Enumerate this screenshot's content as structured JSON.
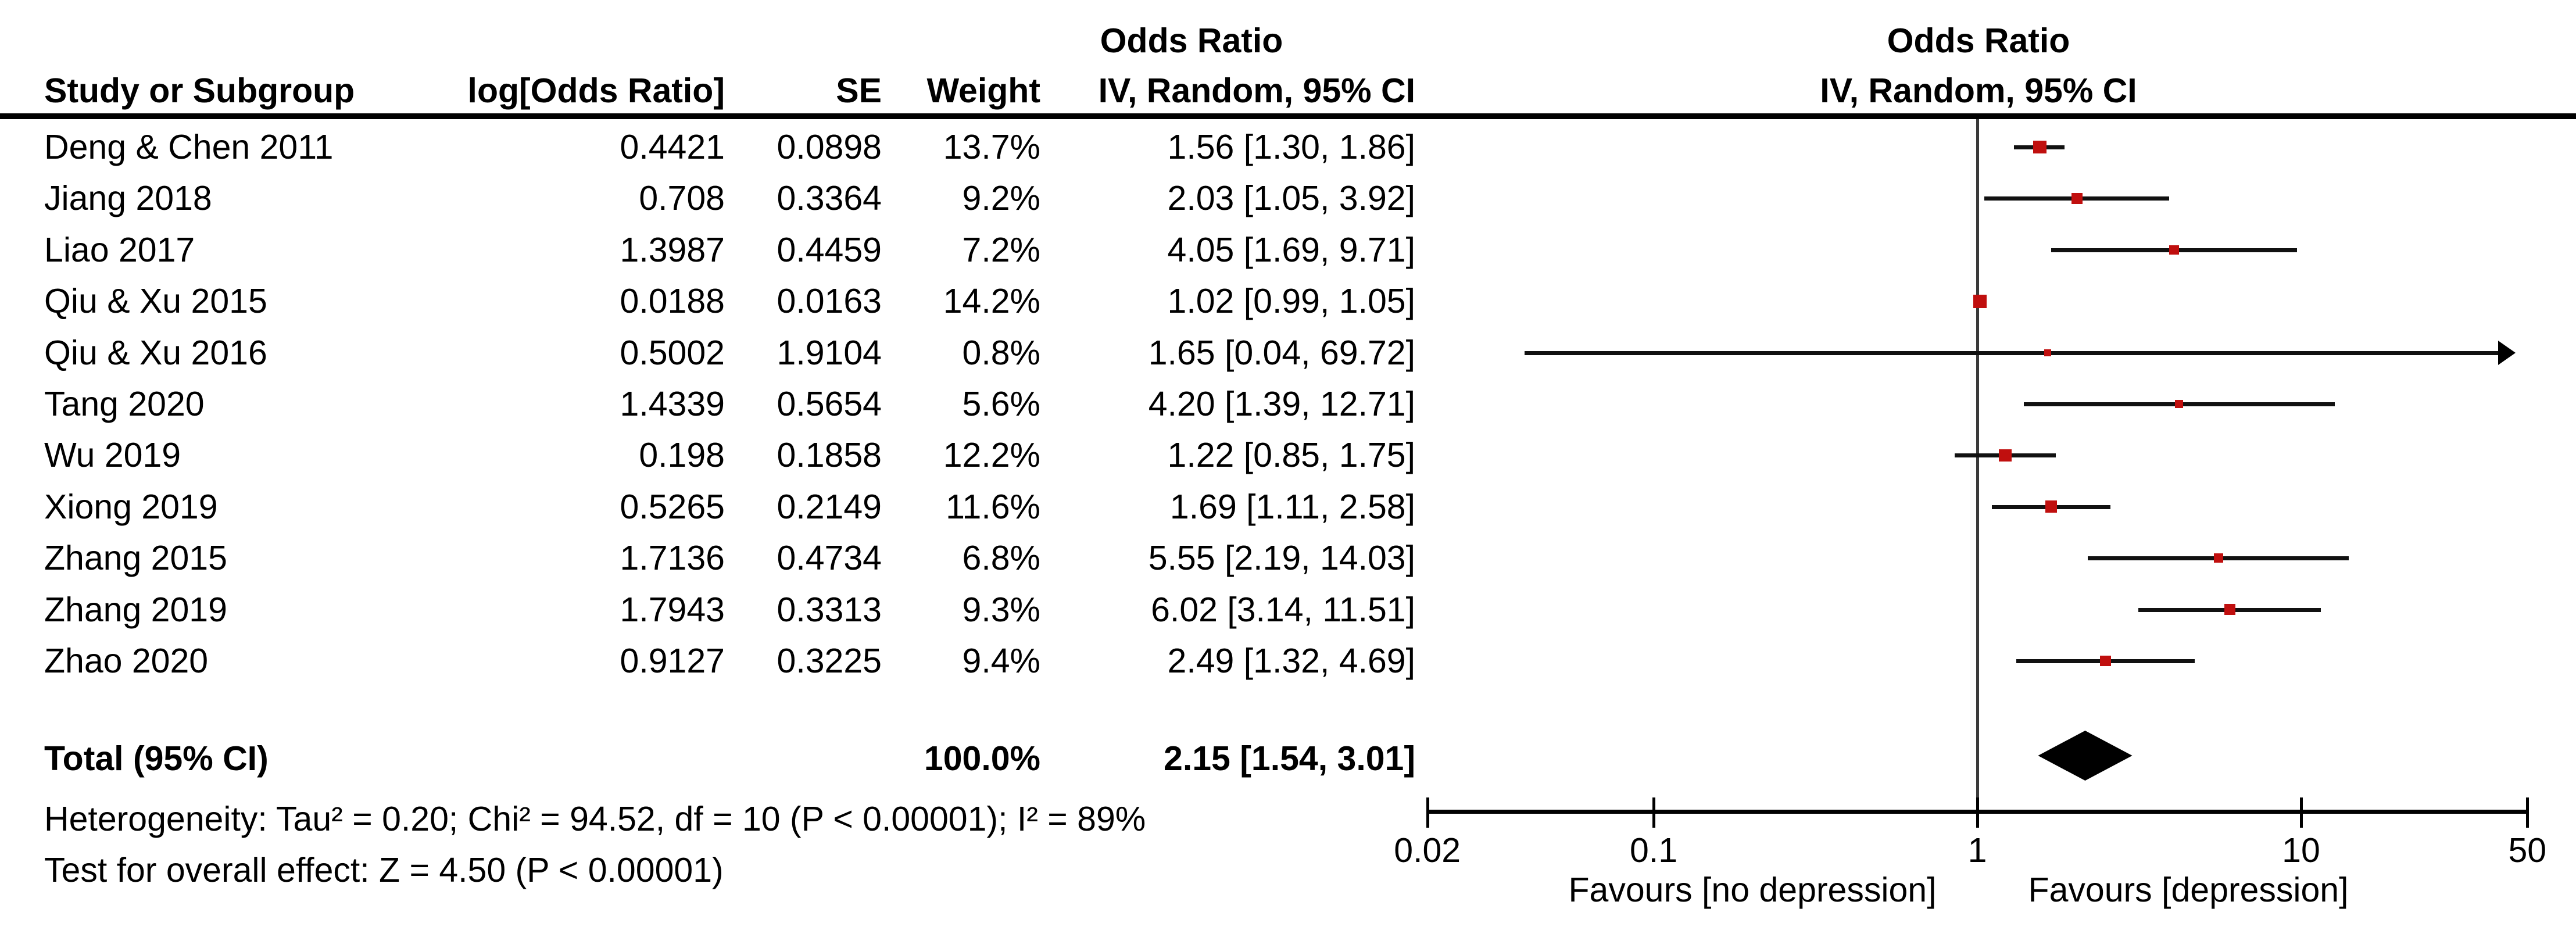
{
  "header": {
    "table_or_top": "Odds Ratio",
    "study": "Study or Subgroup",
    "log_or": "log[Odds Ratio]",
    "se": "SE",
    "weight": "Weight",
    "ci_method": "IV, Random, 95% CI",
    "plot_or_top": "Odds Ratio",
    "plot_ci_method": "IV, Random, 95% CI"
  },
  "stats": {
    "heterogeneity": "Heterogeneity: Tau² = 0.20; Chi² = 94.52, df = 10 (P < 0.00001); I² = 89%",
    "overall_effect": "Test for overall effect: Z = 4.50 (P < 0.00001)"
  },
  "footer": {
    "favours_left": "Favours [no depression]",
    "favours_right": "Favours [depression]"
  },
  "colors": {
    "marker_red": "#c00f0e",
    "line_black": "#111111",
    "axis_black": "#000000",
    "vline_gray": "#3a3a3a"
  },
  "chart_data": {
    "type": "scatter",
    "subtype": "forest-plot-meta-analysis",
    "title": "Odds Ratio IV, Random, 95% CI",
    "x_scale": "log10",
    "x_range": [
      0.02,
      50
    ],
    "x_ticks": [
      "0.02",
      "0.1",
      "1",
      "10",
      "50"
    ],
    "x_tick_values": [
      0.02,
      0.1,
      1,
      10,
      50
    ],
    "null_line": 1,
    "legend_position": "none",
    "grid": false,
    "studies": [
      {
        "name": "Deng & Chen 2011",
        "log_or": "0.4421",
        "se": "0.0898",
        "weight": "13.7%",
        "weight_pct": 13.7,
        "ci_text": "1.56 [1.30, 1.86]",
        "or": 1.56,
        "ci_low": 1.3,
        "ci_high": 1.86
      },
      {
        "name": "Jiang 2018",
        "log_or": "0.708",
        "se": "0.3364",
        "weight": "9.2%",
        "weight_pct": 9.2,
        "ci_text": "2.03 [1.05, 3.92]",
        "or": 2.03,
        "ci_low": 1.05,
        "ci_high": 3.92
      },
      {
        "name": "Liao 2017",
        "log_or": "1.3987",
        "se": "0.4459",
        "weight": "7.2%",
        "weight_pct": 7.2,
        "ci_text": "4.05 [1.69, 9.71]",
        "or": 4.05,
        "ci_low": 1.69,
        "ci_high": 9.71
      },
      {
        "name": "Qiu & Xu 2015",
        "log_or": "0.0188",
        "se": "0.0163",
        "weight": "14.2%",
        "weight_pct": 14.2,
        "ci_text": "1.02 [0.99, 1.05]",
        "or": 1.02,
        "ci_low": 0.99,
        "ci_high": 1.05
      },
      {
        "name": "Qiu & Xu 2016",
        "log_or": "0.5002",
        "se": "1.9104",
        "weight": "0.8%",
        "weight_pct": 0.8,
        "ci_text": "1.65 [0.04, 69.72]",
        "or": 1.65,
        "ci_low": 0.04,
        "ci_high": 69.72
      },
      {
        "name": "Tang 2020",
        "log_or": "1.4339",
        "se": "0.5654",
        "weight": "5.6%",
        "weight_pct": 5.6,
        "ci_text": "4.20 [1.39, 12.71]",
        "or": 4.2,
        "ci_low": 1.39,
        "ci_high": 12.71
      },
      {
        "name": "Wu 2019",
        "log_or": "0.198",
        "se": "0.1858",
        "weight": "12.2%",
        "weight_pct": 12.2,
        "ci_text": "1.22 [0.85, 1.75]",
        "or": 1.22,
        "ci_low": 0.85,
        "ci_high": 1.75
      },
      {
        "name": "Xiong 2019",
        "log_or": "0.5265",
        "se": "0.2149",
        "weight": "11.6%",
        "weight_pct": 11.6,
        "ci_text": "1.69 [1.11, 2.58]",
        "or": 1.69,
        "ci_low": 1.11,
        "ci_high": 2.58
      },
      {
        "name": "Zhang 2015",
        "log_or": "1.7136",
        "se": "0.4734",
        "weight": "6.8%",
        "weight_pct": 6.8,
        "ci_text": "5.55 [2.19, 14.03]",
        "or": 5.55,
        "ci_low": 2.19,
        "ci_high": 14.03
      },
      {
        "name": "Zhang 2019",
        "log_or": "1.7943",
        "se": "0.3313",
        "weight": "9.3%",
        "weight_pct": 9.3,
        "ci_text": "6.02 [3.14, 11.51]",
        "or": 6.02,
        "ci_low": 3.14,
        "ci_high": 11.51
      },
      {
        "name": "Zhao 2020",
        "log_or": "0.9127",
        "se": "0.3225",
        "weight": "9.4%",
        "weight_pct": 9.4,
        "ci_text": "2.49 [1.32, 4.69]",
        "or": 2.49,
        "ci_low": 1.32,
        "ci_high": 4.69
      }
    ],
    "total": {
      "label": "Total (95% CI)",
      "weight": "100.0%",
      "ci_text": "2.15 [1.54, 3.01]",
      "or": 2.15,
      "ci_low": 1.54,
      "ci_high": 3.01
    }
  }
}
